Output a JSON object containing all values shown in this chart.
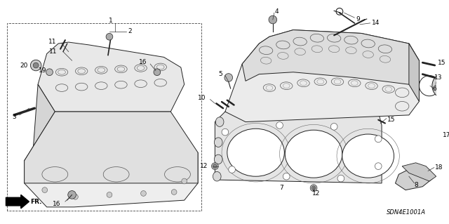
{
  "fig_width": 6.4,
  "fig_height": 3.19,
  "dpi": 100,
  "background_color": "#ffffff",
  "text_color": "#000000",
  "diagram_code": "SDN4E1001A",
  "label_fontsize": 6.5,
  "line_color": "#222222",
  "fill_light": "#f0f0f0",
  "fill_mid": "#d8d8d8",
  "fill_dark": "#b0b0b0",
  "dashed_box": "#444444"
}
